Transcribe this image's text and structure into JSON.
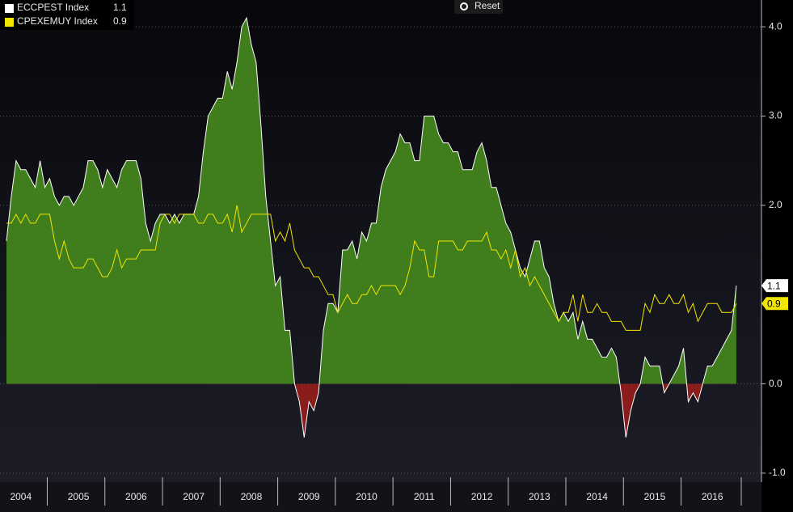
{
  "chart_data": {
    "type": "area-line",
    "controls": {
      "reset": "Reset"
    },
    "categories": [
      null,
      null,
      null,
      "2004",
      null,
      null,
      null,
      null,
      null,
      null,
      null,
      null,
      null,
      null,
      null,
      "2005",
      null,
      null,
      null,
      null,
      null,
      null,
      null,
      null,
      null,
      null,
      null,
      "2006",
      null,
      null,
      null,
      null,
      null,
      null,
      null,
      null,
      null,
      null,
      null,
      "2007",
      null,
      null,
      null,
      null,
      null,
      null,
      null,
      null,
      null,
      null,
      null,
      "2008",
      null,
      null,
      null,
      null,
      null,
      null,
      null,
      null,
      null,
      null,
      null,
      "2009",
      null,
      null,
      null,
      null,
      null,
      null,
      null,
      null,
      null,
      null,
      null,
      "2010",
      null,
      null,
      null,
      null,
      null,
      null,
      null,
      null,
      null,
      null,
      null,
      "2011",
      null,
      null,
      null,
      null,
      null,
      null,
      null,
      null,
      null,
      null,
      null,
      "2012",
      null,
      null,
      null,
      null,
      null,
      null,
      null,
      null,
      null,
      null,
      null,
      "2013",
      null,
      null,
      null,
      null,
      null,
      null,
      null,
      null,
      null,
      null,
      null,
      "2014",
      null,
      null,
      null,
      null,
      null,
      null,
      null,
      null,
      null,
      null,
      null,
      "2015",
      null,
      null,
      null,
      null,
      null,
      null,
      null,
      null,
      null,
      null,
      null,
      "2016",
      null,
      null,
      null,
      null,
      null
    ],
    "series": [
      {
        "name": "ECCPEST Index",
        "color": "#ffffff",
        "fill_positive": "#3f7d1d",
        "fill_negative": "#8a1c1c",
        "values": [
          1.6,
          2.1,
          2.5,
          2.4,
          2.4,
          2.3,
          2.2,
          2.5,
          2.2,
          2.3,
          2.1,
          2.0,
          2.1,
          2.1,
          2.0,
          2.1,
          2.2,
          2.5,
          2.5,
          2.4,
          2.2,
          2.4,
          2.3,
          2.2,
          2.4,
          2.5,
          2.5,
          2.5,
          2.3,
          1.8,
          1.6,
          1.8,
          1.9,
          1.9,
          1.8,
          1.9,
          1.8,
          1.9,
          1.9,
          1.9,
          2.1,
          2.6,
          3.0,
          3.1,
          3.2,
          3.2,
          3.5,
          3.3,
          3.6,
          4.0,
          4.1,
          3.8,
          3.6,
          2.9,
          2.1,
          1.6,
          1.1,
          1.2,
          0.6,
          0.6,
          0.0,
          -0.2,
          -0.6,
          -0.2,
          -0.3,
          -0.1,
          0.6,
          0.9,
          0.9,
          0.8,
          1.5,
          1.5,
          1.6,
          1.4,
          1.7,
          1.6,
          1.8,
          1.8,
          2.2,
          2.4,
          2.5,
          2.6,
          2.8,
          2.7,
          2.7,
          2.5,
          2.5,
          3.0,
          3.0,
          3.0,
          2.8,
          2.7,
          2.7,
          2.6,
          2.6,
          2.4,
          2.4,
          2.4,
          2.6,
          2.7,
          2.5,
          2.2,
          2.2,
          2.0,
          1.8,
          1.7,
          1.5,
          1.3,
          1.2,
          1.4,
          1.6,
          1.6,
          1.3,
          1.2,
          0.9,
          0.7,
          0.8,
          0.7,
          0.8,
          0.5,
          0.7,
          0.5,
          0.5,
          0.4,
          0.3,
          0.3,
          0.4,
          0.3,
          -0.1,
          -0.6,
          -0.3,
          -0.1,
          0.0,
          0.3,
          0.2,
          0.2,
          0.2,
          -0.1,
          0.0,
          0.1,
          0.2,
          0.4,
          -0.2,
          -0.1,
          -0.2,
          0.0,
          0.2,
          0.2,
          0.3,
          0.4,
          0.5,
          0.6,
          1.1
        ]
      },
      {
        "name": "CPEXEMUY Index",
        "color": "#f2e600",
        "values": [
          1.8,
          1.8,
          1.9,
          1.8,
          1.9,
          1.8,
          1.8,
          1.9,
          1.9,
          1.9,
          1.6,
          1.4,
          1.6,
          1.4,
          1.3,
          1.3,
          1.3,
          1.4,
          1.4,
          1.3,
          1.2,
          1.2,
          1.3,
          1.5,
          1.3,
          1.4,
          1.4,
          1.4,
          1.5,
          1.5,
          1.5,
          1.5,
          1.8,
          1.9,
          1.9,
          1.8,
          1.9,
          1.9,
          1.9,
          1.9,
          1.8,
          1.8,
          1.9,
          1.9,
          1.8,
          1.8,
          1.9,
          1.7,
          2.0,
          1.7,
          1.8,
          1.9,
          1.9,
          1.9,
          1.9,
          1.9,
          1.6,
          1.7,
          1.6,
          1.8,
          1.5,
          1.4,
          1.3,
          1.3,
          1.2,
          1.2,
          1.1,
          1.0,
          1.0,
          0.8,
          0.9,
          1.0,
          0.9,
          0.9,
          1.0,
          1.0,
          1.1,
          1.0,
          1.1,
          1.1,
          1.1,
          1.1,
          1.0,
          1.1,
          1.3,
          1.6,
          1.5,
          1.5,
          1.2,
          1.2,
          1.6,
          1.6,
          1.6,
          1.6,
          1.5,
          1.5,
          1.6,
          1.6,
          1.6,
          1.6,
          1.7,
          1.5,
          1.5,
          1.4,
          1.5,
          1.3,
          1.5,
          1.2,
          1.3,
          1.1,
          1.2,
          1.1,
          1.0,
          0.9,
          0.8,
          0.7,
          0.8,
          0.8,
          1.0,
          0.7,
          1.0,
          0.8,
          0.8,
          0.9,
          0.8,
          0.8,
          0.7,
          0.7,
          0.7,
          0.6,
          0.6,
          0.6,
          0.6,
          0.9,
          0.8,
          1.0,
          0.9,
          0.9,
          1.0,
          0.9,
          0.9,
          1.0,
          0.8,
          0.9,
          0.7,
          0.8,
          0.9,
          0.9,
          0.9,
          0.8,
          0.8,
          0.8,
          0.9
        ]
      }
    ],
    "ylim": [
      -1.1,
      4.3
    ],
    "yticks": [
      {
        "value": -1,
        "label": "-1.0"
      },
      {
        "value": 0,
        "label": "0.0"
      },
      {
        "value": 2,
        "label": "2.0"
      },
      {
        "value": 3,
        "label": "3.0"
      },
      {
        "value": 4,
        "label": "4.0"
      }
    ],
    "grid": true
  }
}
